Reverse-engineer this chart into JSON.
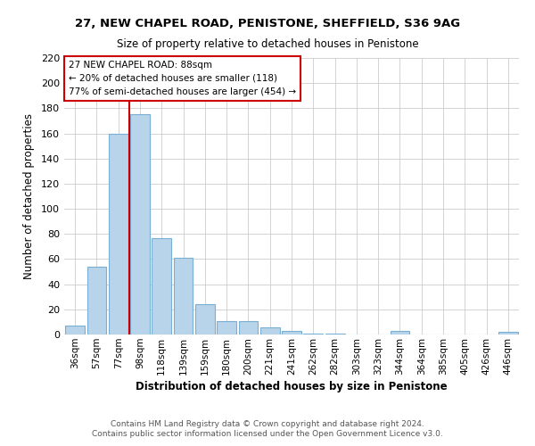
{
  "title_line1": "27, NEW CHAPEL ROAD, PENISTONE, SHEFFIELD, S36 9AG",
  "title_line2": "Size of property relative to detached houses in Penistone",
  "xlabel": "Distribution of detached houses by size in Penistone",
  "ylabel": "Number of detached properties",
  "bar_labels": [
    "36sqm",
    "57sqm",
    "77sqm",
    "98sqm",
    "118sqm",
    "139sqm",
    "159sqm",
    "180sqm",
    "200sqm",
    "221sqm",
    "241sqm",
    "262sqm",
    "282sqm",
    "303sqm",
    "323sqm",
    "344sqm",
    "364sqm",
    "385sqm",
    "405sqm",
    "426sqm",
    "446sqm"
  ],
  "bar_values": [
    7,
    54,
    160,
    175,
    77,
    61,
    24,
    11,
    11,
    6,
    3,
    1,
    1,
    0,
    0,
    3,
    0,
    0,
    0,
    0,
    2
  ],
  "bar_color": "#b8d4ea",
  "bar_edge_color": "#7aafd4",
  "ylim": [
    0,
    220
  ],
  "yticks": [
    0,
    20,
    40,
    60,
    80,
    100,
    120,
    140,
    160,
    180,
    200,
    220
  ],
  "vline_color": "#cc0000",
  "annotation_title": "27 NEW CHAPEL ROAD: 88sqm",
  "annotation_line1": "← 20% of detached houses are smaller (118)",
  "annotation_line2": "77% of semi-detached houses are larger (454) →",
  "footer_line1": "Contains HM Land Registry data © Crown copyright and database right 2024.",
  "footer_line2": "Contains public sector information licensed under the Open Government Licence v3.0.",
  "background_color": "#ffffff",
  "grid_color": "#cccccc"
}
